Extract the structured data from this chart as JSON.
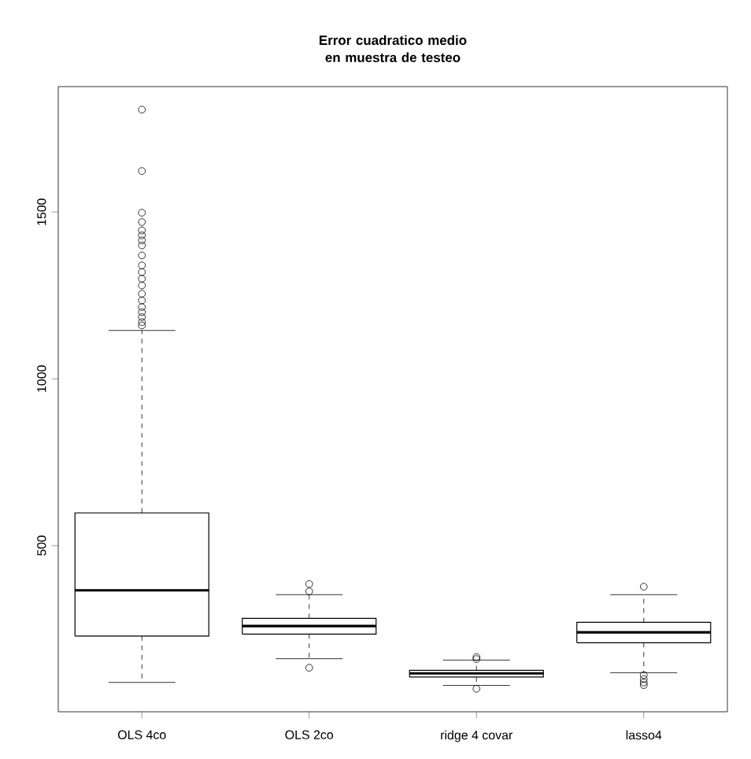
{
  "chart_data": {
    "type": "box",
    "title": "Error cuadratico medio en muestra de testeo",
    "categories": [
      "OLS 4co",
      "OLS 2co",
      "ridge 4 covar",
      "lasso4"
    ],
    "boxes": [
      {
        "low": 90,
        "q1": 229,
        "median": 366,
        "q3": 598,
        "high": 1145,
        "outliers": [
          1807,
          1623,
          1498,
          1470,
          1445,
          1430,
          1415,
          1400,
          1370,
          1340,
          1320,
          1300,
          1280,
          1255,
          1235,
          1215,
          1200,
          1185,
          1170,
          1160
        ]
      },
      {
        "low": 161,
        "q1": 235,
        "median": 259,
        "q3": 282,
        "high": 353,
        "outliers": [
          385,
          363,
          134
        ]
      },
      {
        "low": 81,
        "q1": 106,
        "median": 117,
        "q3": 126,
        "high": 157,
        "outliers": [
          166,
          160,
          71
        ]
      },
      {
        "low": 119,
        "q1": 209,
        "median": 240,
        "q3": 270,
        "high": 353,
        "outliers": [
          377,
          112,
          100,
          90,
          82
        ]
      }
    ],
    "ylim": [
      2,
      1876
    ],
    "yticks": [
      500,
      1000,
      1500
    ],
    "grid": false,
    "marker": "circle"
  }
}
